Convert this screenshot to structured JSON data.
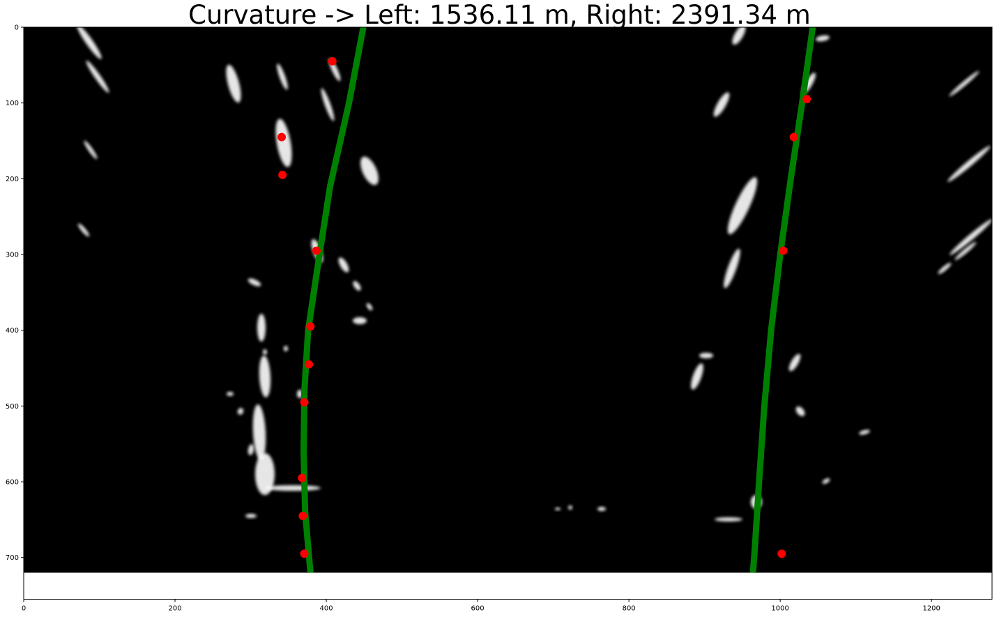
{
  "chart_data": {
    "type": "scatter",
    "title": "Curvature -> Left: 1536.11 m, Right: 2391.34 m",
    "xlabel": "",
    "ylabel": "",
    "xlim": [
      0,
      1280
    ],
    "ylim": [
      755,
      0
    ],
    "image_rows": 720,
    "grid": false,
    "x_ticks": [
      0,
      200,
      400,
      600,
      800,
      1000,
      1200
    ],
    "y_ticks": [
      0,
      100,
      200,
      300,
      400,
      500,
      600,
      700
    ],
    "colors": {
      "background": "#000000",
      "lane_line": "#008000",
      "points": "#ff0000",
      "lane_pixels": "#ffffff"
    },
    "series": [
      {
        "kind": "scatter",
        "points": [
          {
            "x": 408,
            "y": 45
          },
          {
            "x": 341,
            "y": 145
          },
          {
            "x": 342,
            "y": 195
          },
          {
            "x": 387,
            "y": 295
          },
          {
            "x": 379,
            "y": 395
          },
          {
            "x": 377,
            "y": 445
          },
          {
            "x": 371,
            "y": 495
          },
          {
            "x": 368,
            "y": 595
          },
          {
            "x": 369,
            "y": 645
          },
          {
            "x": 371,
            "y": 695
          },
          {
            "x": 1035,
            "y": 95
          },
          {
            "x": 1018,
            "y": 145
          },
          {
            "x": 1004,
            "y": 295
          },
          {
            "x": 1002,
            "y": 695
          }
        ]
      },
      {
        "kind": "line",
        "points": [
          {
            "x": 449,
            "y": 0
          },
          {
            "x": 430,
            "y": 100
          },
          {
            "x": 405,
            "y": 210
          },
          {
            "x": 391,
            "y": 300
          },
          {
            "x": 376,
            "y": 400
          },
          {
            "x": 371,
            "y": 480
          },
          {
            "x": 370,
            "y": 560
          },
          {
            "x": 372,
            "y": 640
          },
          {
            "x": 379,
            "y": 720
          }
        ]
      },
      {
        "kind": "line",
        "points": [
          {
            "x": 1043,
            "y": 0
          },
          {
            "x": 1029,
            "y": 100
          },
          {
            "x": 1014,
            "y": 200
          },
          {
            "x": 1000,
            "y": 300
          },
          {
            "x": 988,
            "y": 400
          },
          {
            "x": 979,
            "y": 500
          },
          {
            "x": 972,
            "y": 600
          },
          {
            "x": 967,
            "y": 680
          },
          {
            "x": 964,
            "y": 720
          }
        ]
      }
    ]
  }
}
